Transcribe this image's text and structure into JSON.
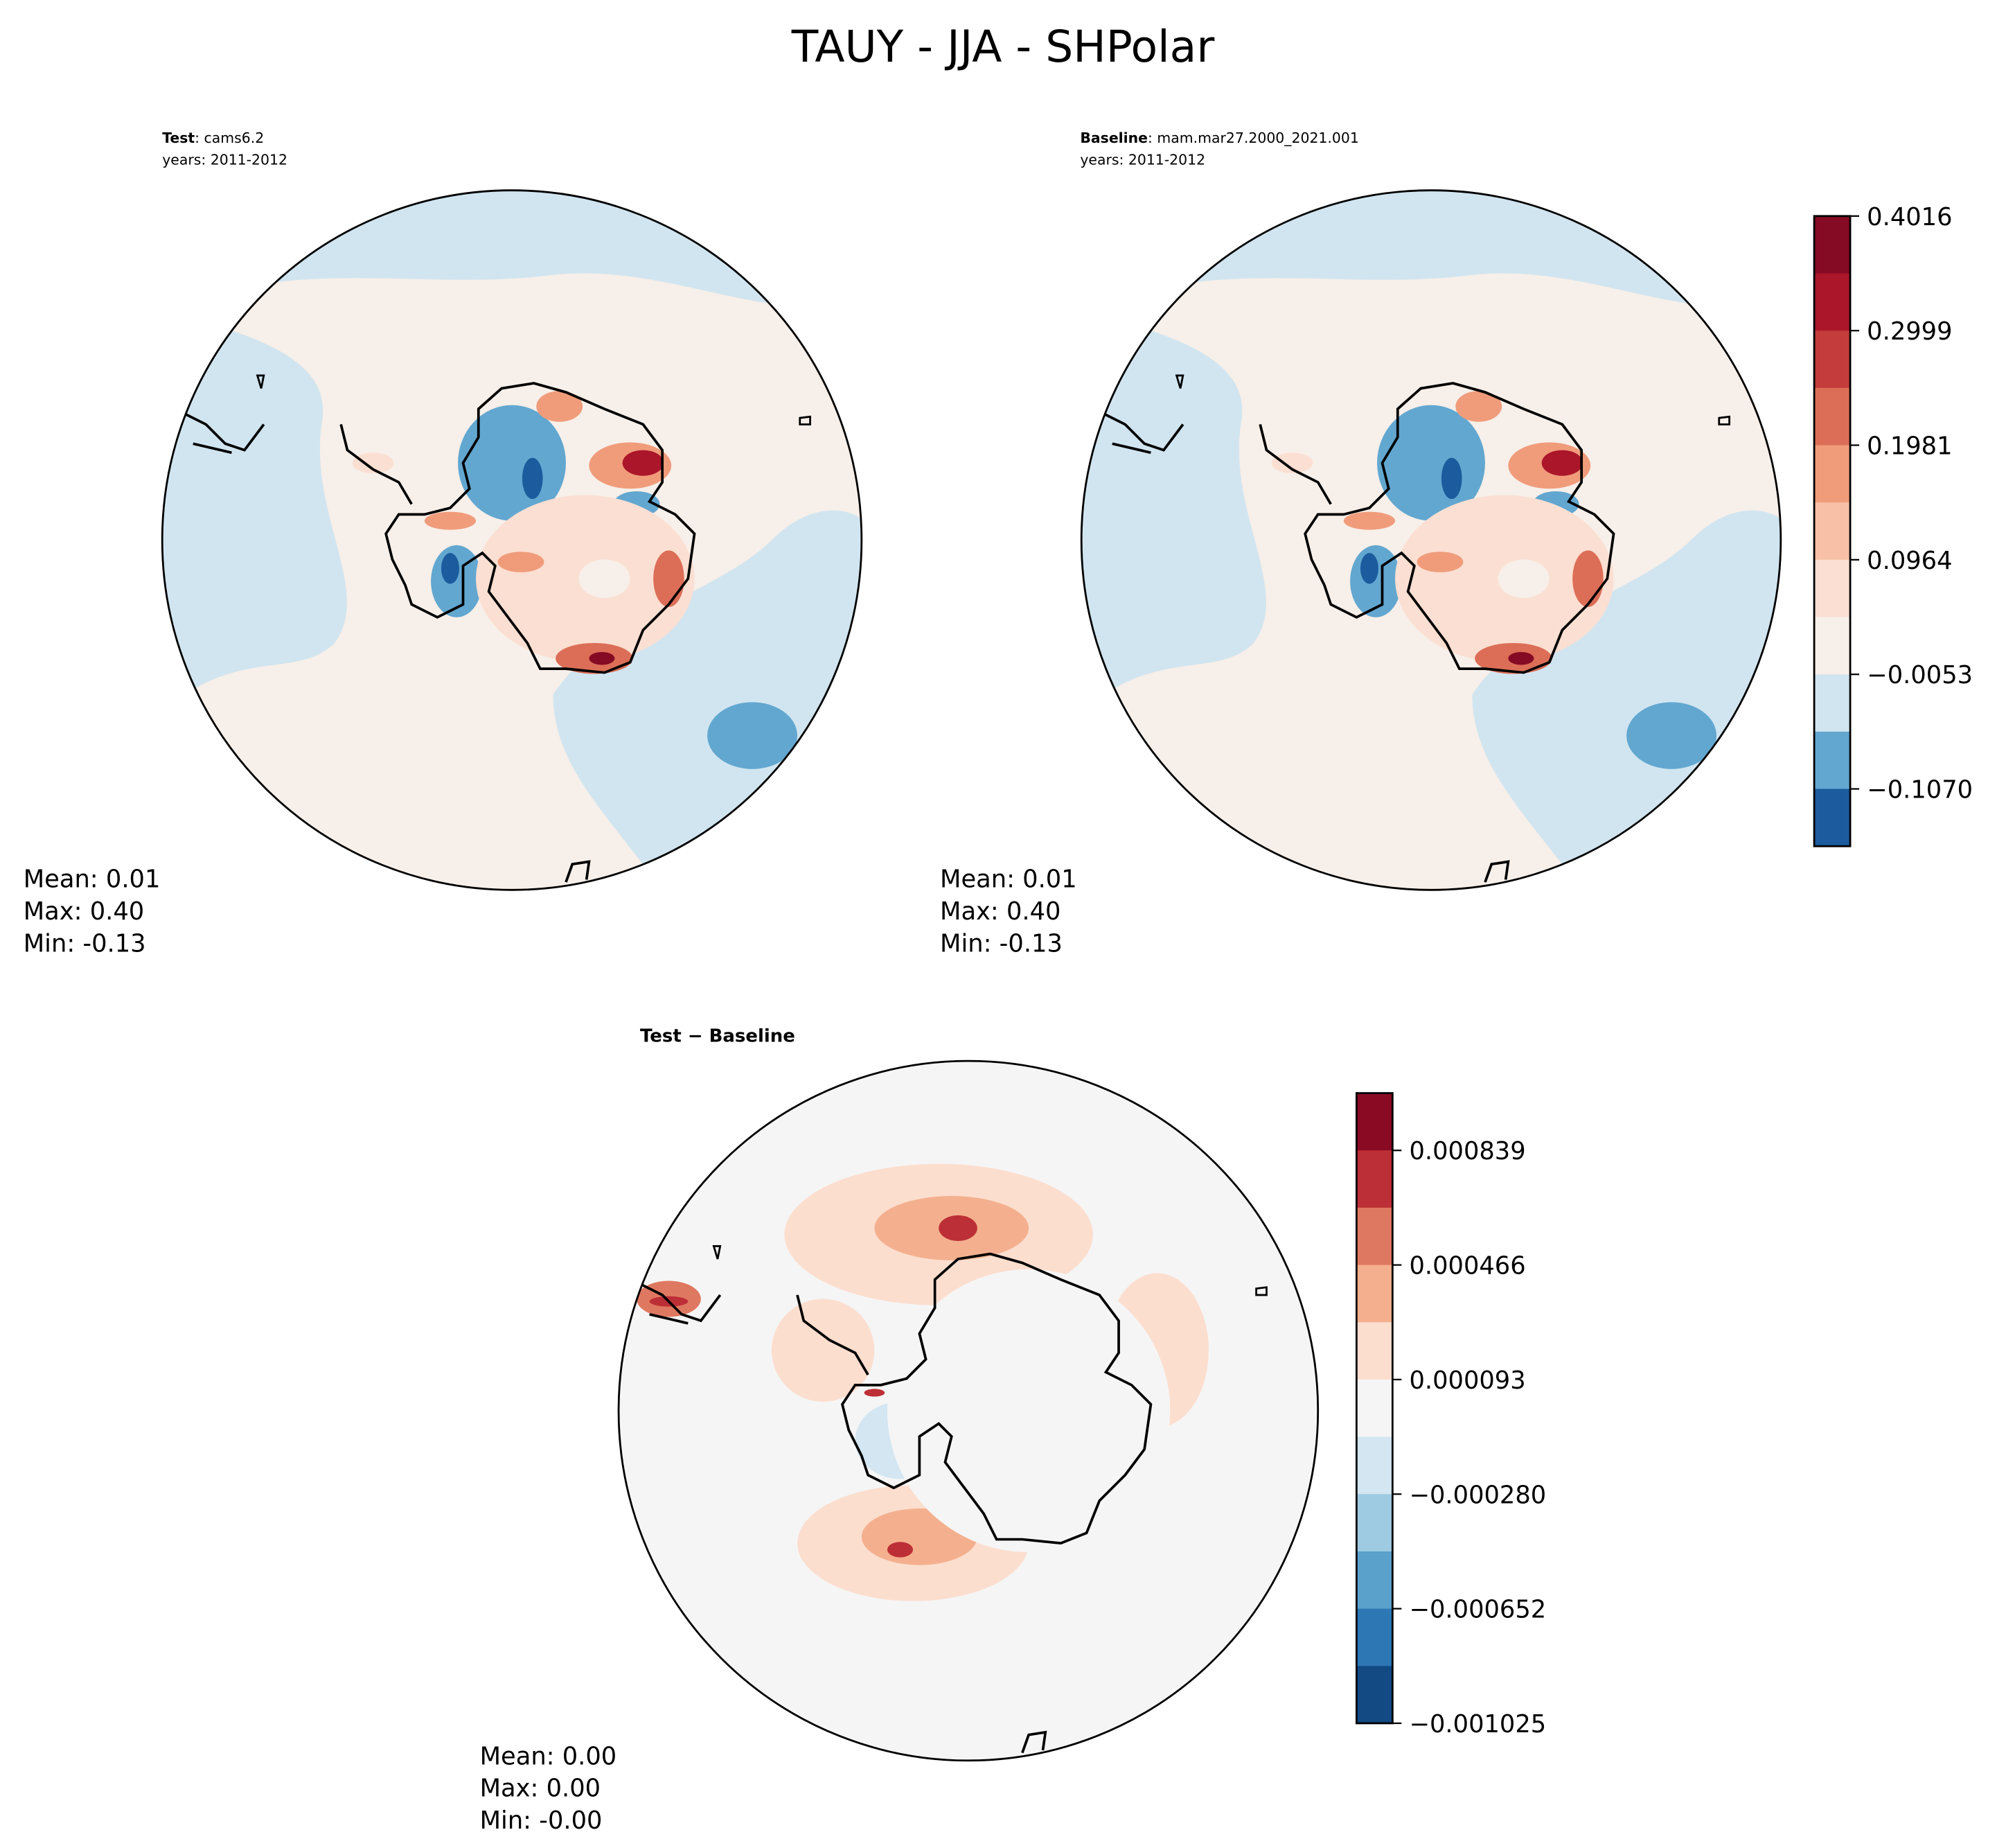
{
  "title": "TAUY - JJA - SHPolar",
  "chart_data": [
    {
      "type": "heatmap",
      "projection": "south-polar-stereographic",
      "panel": "test",
      "title_bold": "Test",
      "title_rest": ": cams6.2",
      "years": "years: 2011-2012",
      "stats": {
        "mean": "Mean:  0.01",
        "max": "Max:  0.40",
        "min": "Min: -0.13"
      },
      "colorbar": "shared"
    },
    {
      "type": "heatmap",
      "projection": "south-polar-stereographic",
      "panel": "baseline",
      "title_bold": "Baseline",
      "title_rest": ": mam.mar27.2000_2021.001",
      "years": "years: 2011-2012",
      "stats": {
        "mean": "Mean:  0.01",
        "max": "Max:  0.40",
        "min": "Min: -0.13"
      },
      "colorbar": {
        "ticks": [
          "0.4016",
          "0.2999",
          "0.1981",
          "0.0964",
          "−0.0053",
          "−0.1070"
        ],
        "colors": [
          "#850a24",
          "#ab162a",
          "#c43c3c",
          "#dc6e57",
          "#f09c7b",
          "#f8c0a6",
          "#fbdfd2",
          "#f7efe9",
          "#d1e5f0",
          "#62a7d0",
          "#1c5b9d"
        ]
      }
    },
    {
      "type": "heatmap",
      "projection": "south-polar-stereographic",
      "panel": "difference",
      "title": "Test − Baseline",
      "stats": {
        "mean": "Mean:  0.00",
        "max": "Max:  0.00",
        "min": "Min: -0.00"
      },
      "colorbar": {
        "ticks": [
          "0.000839",
          "0.000466",
          "0.000093",
          "−0.000280",
          "−0.000652",
          "−0.001025"
        ],
        "colors": [
          "#8a0a24",
          "#bd2f36",
          "#df7860",
          "#f4b08e",
          "#fcdecf",
          "#f5f5f5",
          "#d3e6f2",
          "#9ecbe2",
          "#5aa1cb",
          "#2d77b5",
          "#134a84"
        ]
      }
    }
  ]
}
